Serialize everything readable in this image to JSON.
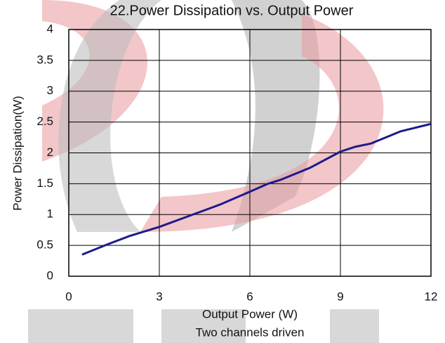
{
  "chart_data": {
    "type": "line",
    "title": "22.Power Dissipation vs. Output Power",
    "x_label": "Output Power (W)",
    "y_label": "Power Dissipation(W)",
    "annotation": "Two channels driven",
    "x": [
      0.44,
      1.3,
      2,
      3,
      4,
      5,
      6,
      6.6,
      7,
      8,
      9,
      9.5,
      10,
      11,
      12
    ],
    "values": [
      0.35,
      0.52,
      0.65,
      0.8,
      0.98,
      1.16,
      1.37,
      1.5,
      1.56,
      1.76,
      2.02,
      2.1,
      2.15,
      2.35,
      2.47
    ],
    "color": "#1c1c8a",
    "xlim": [
      0,
      12
    ],
    "xticks": [
      0,
      3,
      6,
      9,
      12
    ],
    "ylim": [
      0,
      4
    ],
    "yticks": [
      0,
      0.5,
      1,
      1.5,
      2,
      2.5,
      3,
      3.5,
      4
    ],
    "grid": true
  }
}
